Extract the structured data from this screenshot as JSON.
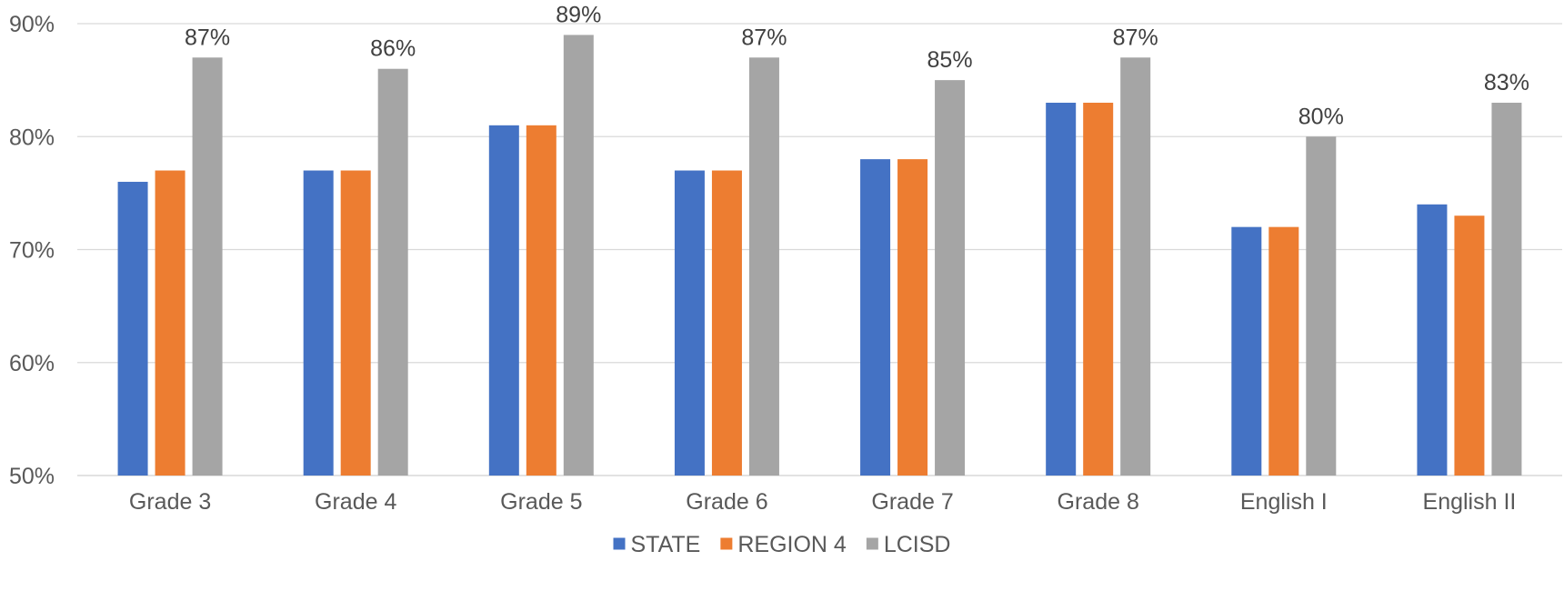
{
  "chart_data": {
    "type": "bar",
    "title": "",
    "xlabel": "",
    "ylabel": "",
    "categories": [
      "Grade 3",
      "Grade 4",
      "Grade 5",
      "Grade 6",
      "Grade 7",
      "Grade 8",
      "English I",
      "English II"
    ],
    "series": [
      {
        "name": "STATE",
        "color": "#4472C4",
        "values": [
          76,
          77,
          81,
          77,
          78,
          83,
          72,
          74
        ]
      },
      {
        "name": "REGION 4",
        "color": "#ED7D31",
        "values": [
          77,
          77,
          81,
          77,
          78,
          83,
          72,
          73
        ]
      },
      {
        "name": "LCISD",
        "color": "#A5A5A5",
        "values": [
          87,
          86,
          89,
          87,
          85,
          87,
          80,
          83
        ],
        "data_labels": [
          "87%",
          "86%",
          "89%",
          "87%",
          "85%",
          "87%",
          "80%",
          "83%"
        ]
      }
    ],
    "ylim": [
      50,
      90
    ],
    "y_ticks": [
      50,
      60,
      70,
      80,
      90
    ],
    "y_tick_labels": [
      "50%",
      "60%",
      "70%",
      "80%",
      "90%"
    ],
    "grid": true,
    "legend_position": "bottom"
  }
}
